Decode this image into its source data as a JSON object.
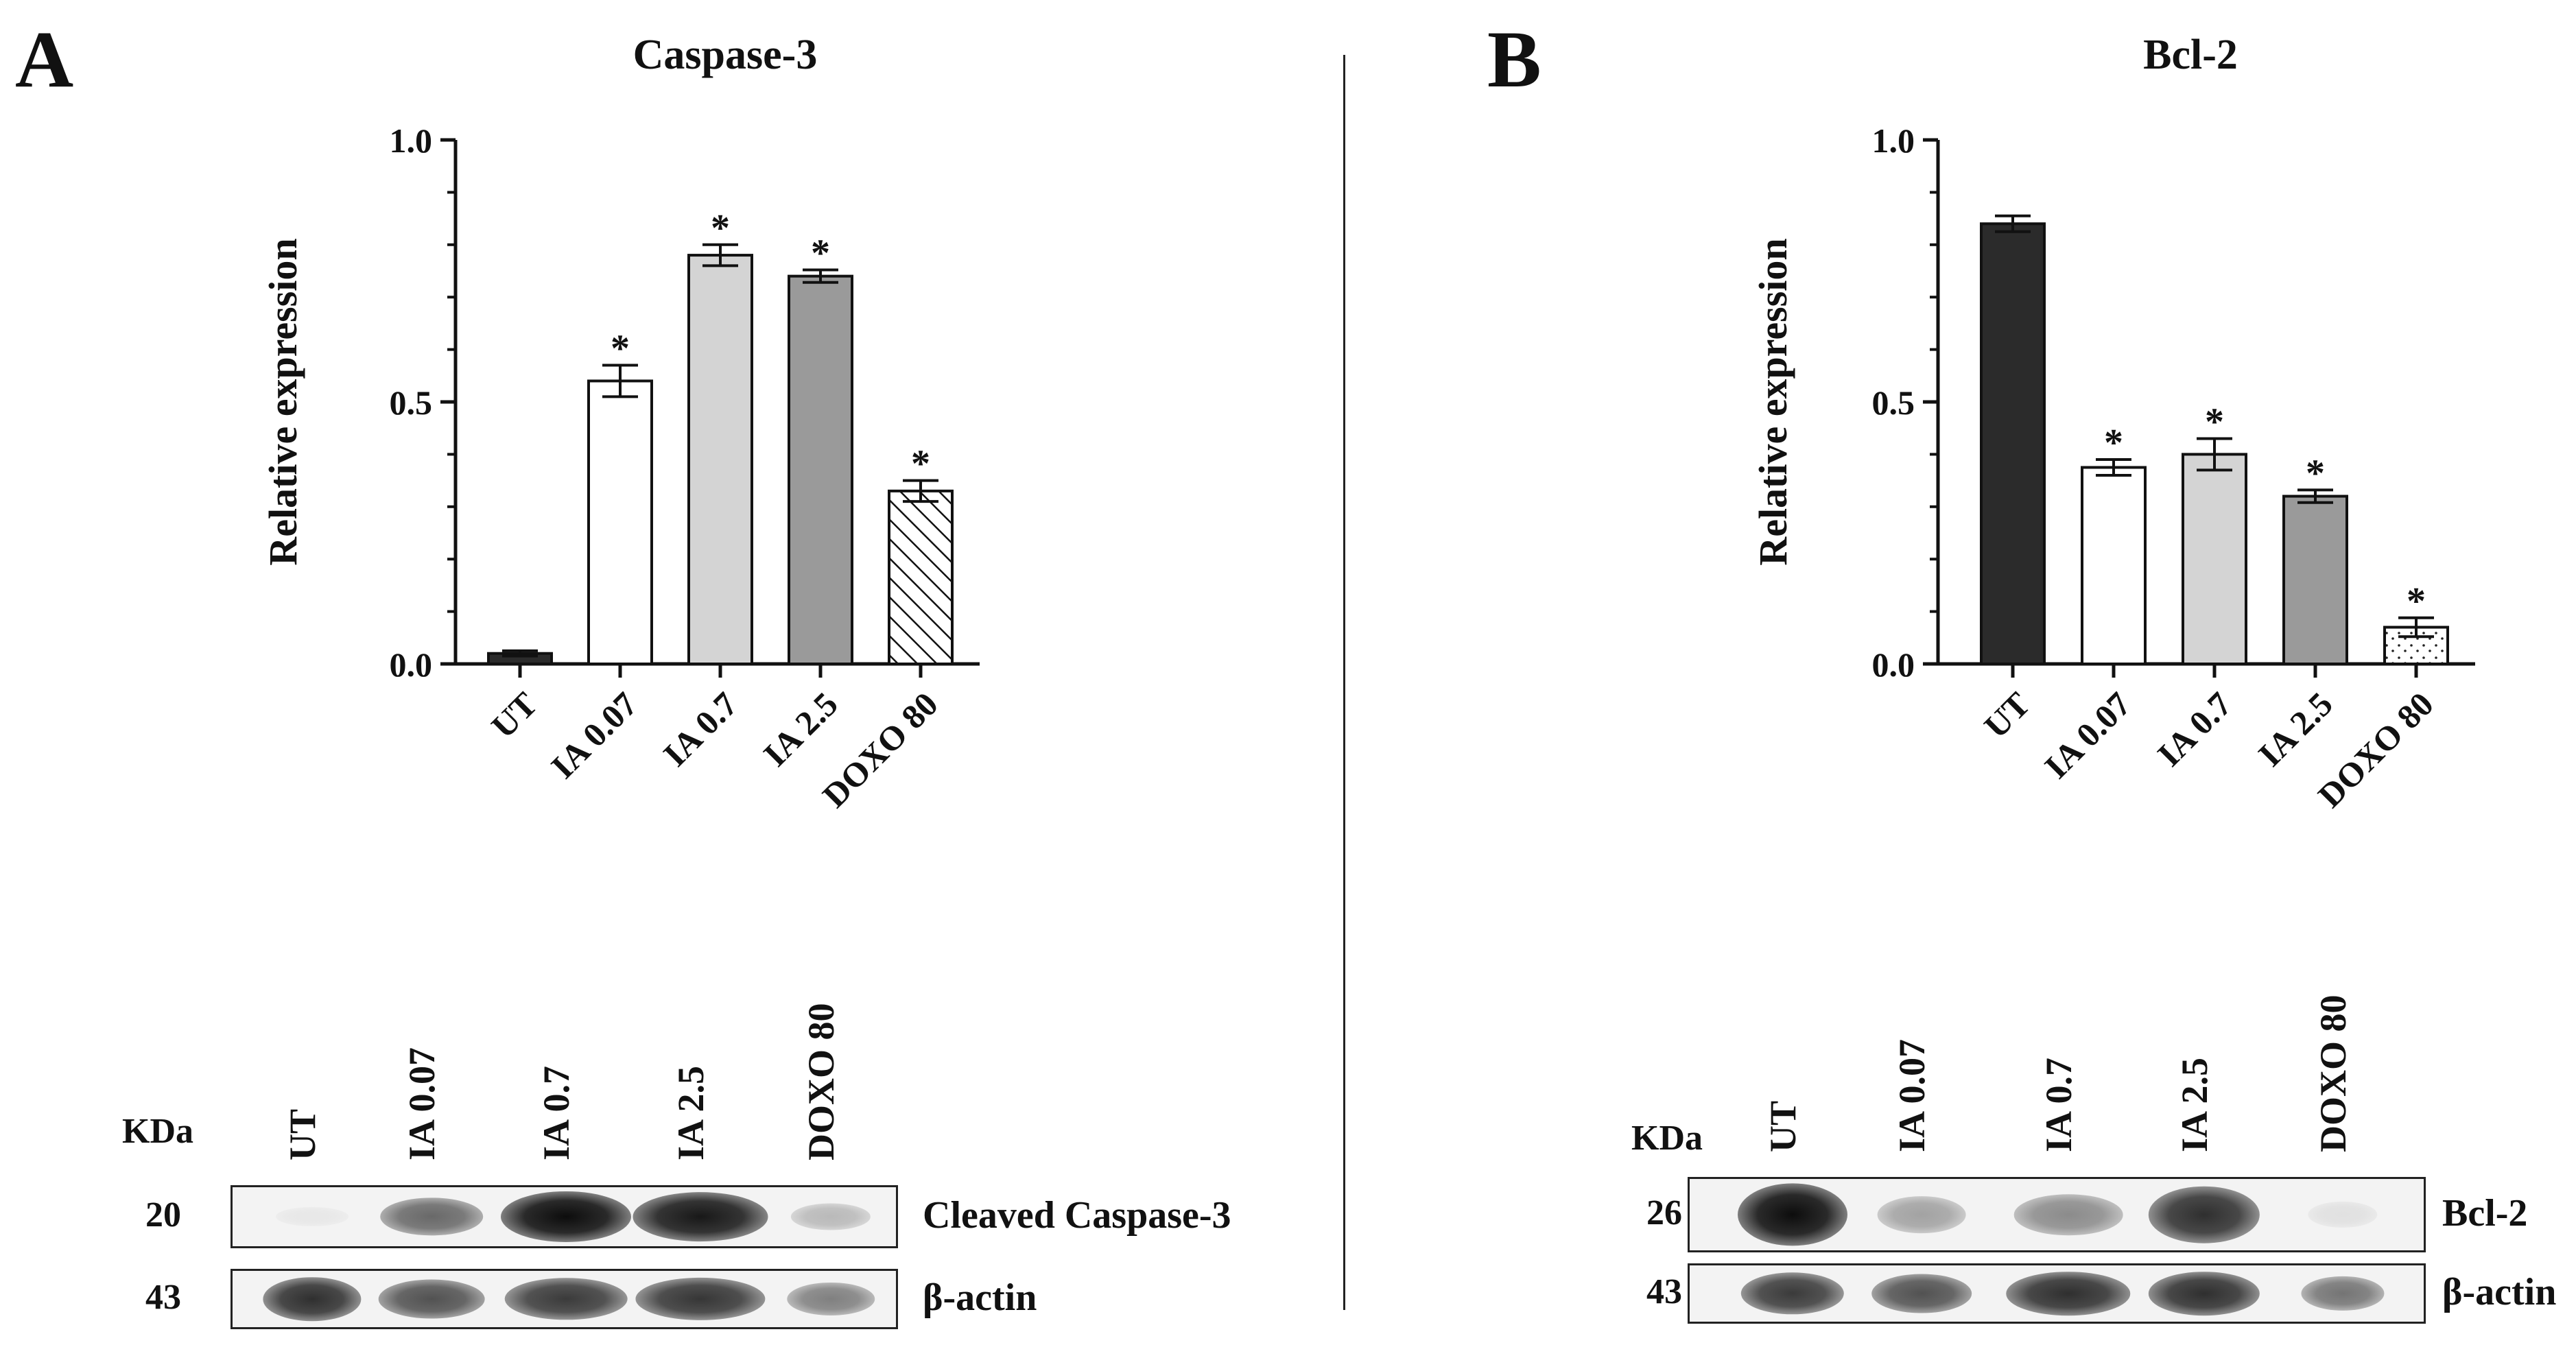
{
  "panels": [
    {
      "letter": "A",
      "chart_data": {
        "type": "bar",
        "title": "Caspase-3",
        "ylabel": "Relative expression",
        "xlabel": "",
        "categories": [
          "UT",
          "IA 0.07",
          "IA 0.7",
          "IA 2.5",
          "DOXO 80"
        ],
        "values": [
          0.02,
          0.54,
          0.78,
          0.74,
          0.33
        ],
        "errors": [
          0.005,
          0.03,
          0.02,
          0.012,
          0.02
        ],
        "significance": [
          "",
          "*",
          "*",
          "*",
          "*"
        ],
        "bar_styles": [
          "dark",
          "white",
          "light-gray",
          "mid-gray",
          "hatched"
        ],
        "yticks": [
          "0.0",
          "0.5",
          "1.0"
        ],
        "ylim": [
          0,
          1.0
        ]
      },
      "blot": {
        "kda_label": "KDa",
        "lanes": [
          "UT",
          "IA 0.07",
          "IA 0.7",
          "IA 2.5",
          "DOXO 80"
        ],
        "rows": [
          {
            "mw": "20",
            "protein": "Cleaved Caspase-3",
            "intensity": [
              0.02,
              0.6,
              1.0,
              0.95,
              0.25
            ]
          },
          {
            "mw": "43",
            "protein": "β-actin",
            "intensity": [
              0.85,
              0.7,
              0.8,
              0.82,
              0.5
            ]
          }
        ]
      }
    },
    {
      "letter": "B",
      "chart_data": {
        "type": "bar",
        "title": "Bcl-2",
        "ylabel": "Relative expression",
        "xlabel": "",
        "categories": [
          "UT",
          "IA 0.07",
          "IA 0.7",
          "IA 2.5",
          "DOXO 80"
        ],
        "values": [
          0.84,
          0.375,
          0.4,
          0.32,
          0.07
        ],
        "errors": [
          0.015,
          0.015,
          0.03,
          0.012,
          0.018
        ],
        "significance": [
          "",
          "*",
          "*",
          "*",
          "*"
        ],
        "bar_styles": [
          "dark",
          "white",
          "light-gray",
          "mid-gray",
          "dotted"
        ],
        "yticks": [
          "0.0",
          "0.5",
          "1.0"
        ],
        "ylim": [
          0,
          1.0
        ]
      },
      "blot": {
        "kda_label": "KDa",
        "lanes": [
          "UT",
          "IA 0.07",
          "IA 0.7",
          "IA 2.5",
          "DOXO 80"
        ],
        "rows": [
          {
            "mw": "26",
            "protein": "Bcl-2",
            "intensity": [
              1.0,
              0.35,
              0.45,
              0.85,
              0.08
            ]
          },
          {
            "mw": "43",
            "protein": "β-actin",
            "intensity": [
              0.8,
              0.7,
              0.85,
              0.85,
              0.55
            ]
          }
        ]
      }
    }
  ],
  "colors": {
    "dark": "#2b2b2b",
    "white": "#ffffff",
    "light-gray": "#d4d4d4",
    "mid-gray": "#9a9a9a",
    "axis": "#111111"
  }
}
